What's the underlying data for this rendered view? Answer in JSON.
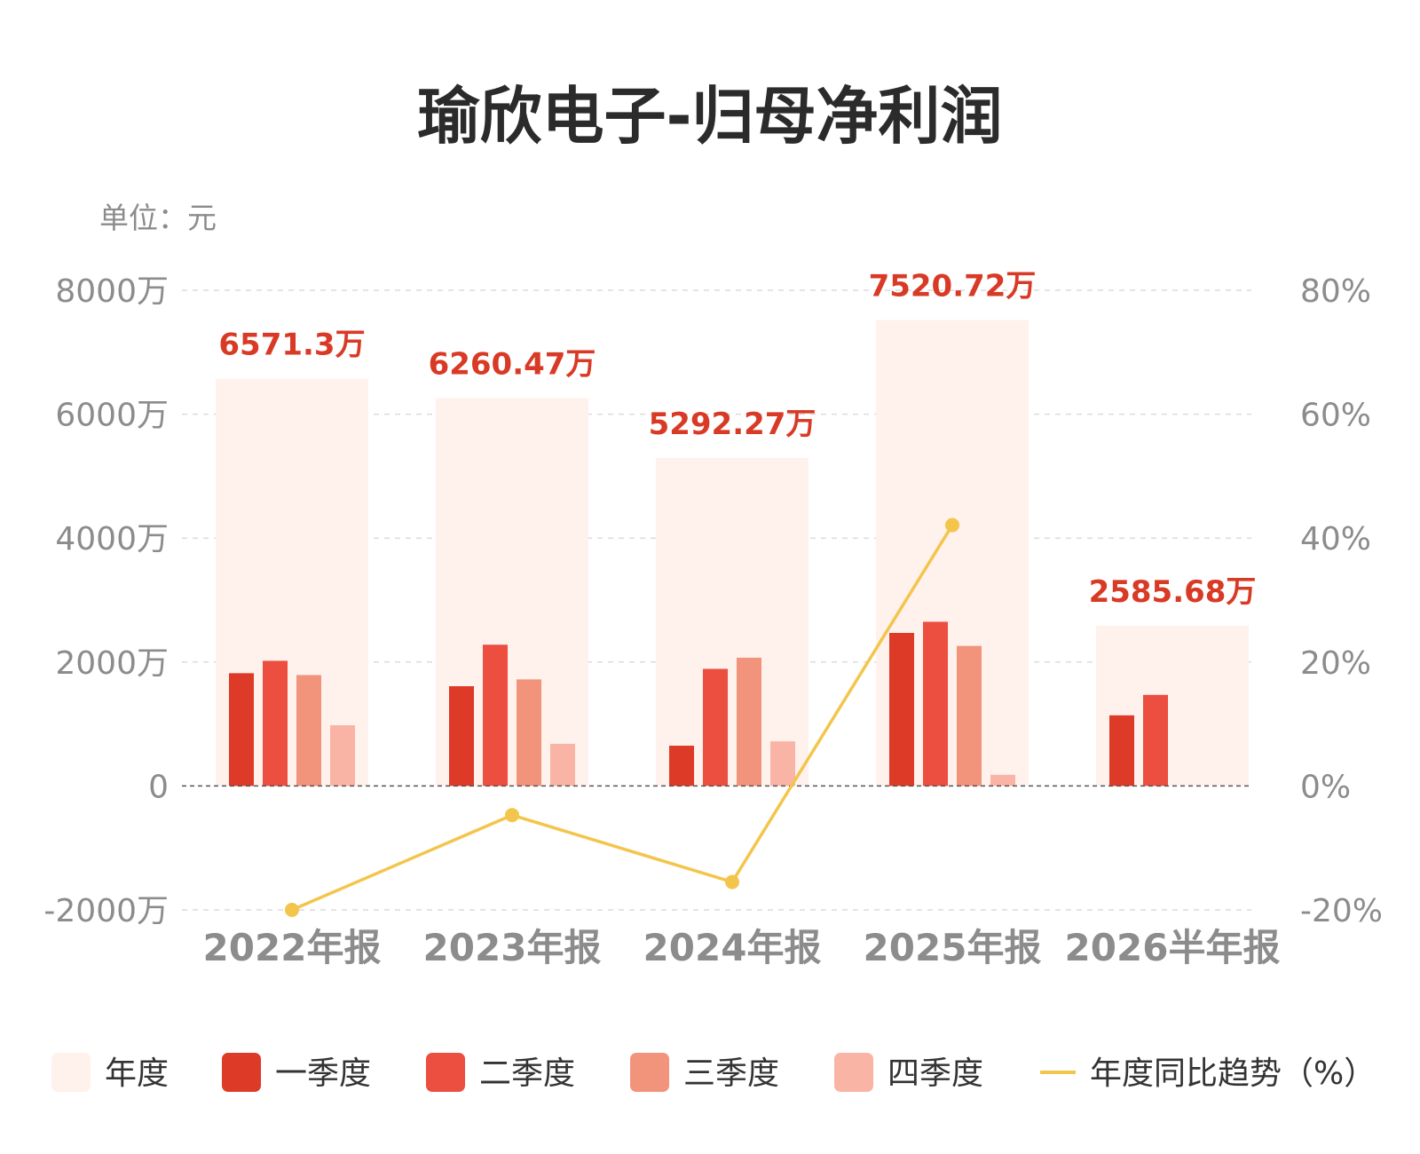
{
  "chart_data": {
    "type": "bar",
    "title": "瑜欣电子-归母净利润",
    "unit_label": "单位：元",
    "categories": [
      "2022年报",
      "2023年报",
      "2024年报",
      "2025年报",
      "2026半年报"
    ],
    "annual": {
      "name": "年度",
      "values": [
        6571.3,
        6260.47,
        5292.27,
        7520.72,
        2585.68
      ],
      "labels": [
        "6571.3万",
        "6260.47万",
        "5292.27万",
        "7520.72万",
        "2585.68万"
      ]
    },
    "series": [
      {
        "name": "一季度",
        "values": [
          1820,
          1610,
          650,
          2470,
          1140
        ]
      },
      {
        "name": "二季度",
        "values": [
          2020,
          2280,
          1890,
          2650,
          1470
        ]
      },
      {
        "name": "三季度",
        "values": [
          1790,
          1720,
          2070,
          2260,
          null
        ]
      },
      {
        "name": "四季度",
        "values": [
          980,
          680,
          720,
          180,
          null
        ]
      }
    ],
    "line": {
      "name": "年度同比趋势（%）",
      "values": [
        -20,
        -4.7,
        -15.5,
        42.1,
        null
      ]
    },
    "ylim": [
      -2000,
      8000
    ],
    "y2lim": [
      -20,
      80
    ],
    "yticks": [
      {
        "value": 8000,
        "label": "8000万"
      },
      {
        "value": 6000,
        "label": "6000万"
      },
      {
        "value": 4000,
        "label": "4000万"
      },
      {
        "value": 2000,
        "label": "2000万"
      },
      {
        "value": 0,
        "label": "0"
      },
      {
        "value": -2000,
        "label": "-2000万"
      }
    ],
    "y2ticks": [
      {
        "value": 80,
        "label": "80%"
      },
      {
        "value": 60,
        "label": "60%"
      },
      {
        "value": 40,
        "label": "40%"
      },
      {
        "value": 20,
        "label": "20%"
      },
      {
        "value": 0,
        "label": "0%"
      },
      {
        "value": -20,
        "label": "-20%"
      }
    ],
    "grid": true,
    "legend_position": "bottom",
    "colors": {
      "annual": "#fff1ec",
      "q1": "#de3a28",
      "q2": "#ec4e40",
      "q3": "#f2937c",
      "q4": "#f9b4a6",
      "line": "#f3c54b",
      "value_label": "#d93a26",
      "axis_text": "#8c8c8c",
      "title": "#2b2b2b"
    }
  }
}
